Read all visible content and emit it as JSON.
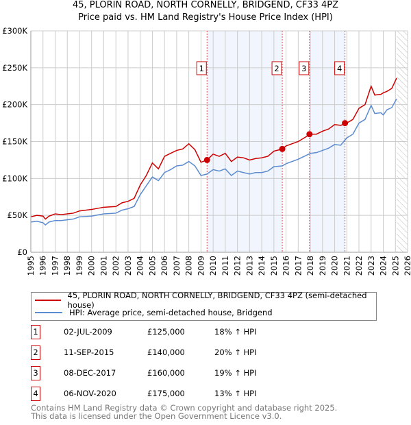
{
  "title_line1": "45, PLORIN ROAD, NORTH CORNELLY, BRIDGEND, CF33 4PZ",
  "title_line2": "Price paid vs. HM Land Registry's House Price Index (HPI)",
  "chart_data": {
    "type": "line",
    "title": "45, PLORIN ROAD, NORTH CORNELLY, BRIDGEND, CF33 4PZ — Price paid vs. HM Land Registry's House Price Index (HPI)",
    "xlim": [
      1995,
      2026
    ],
    "ylim": [
      0,
      300000
    ],
    "y_ticks": [
      {
        "v": 0,
        "label": "£0"
      },
      {
        "v": 50000,
        "label": "£50K"
      },
      {
        "v": 100000,
        "label": "£100K"
      },
      {
        "v": 150000,
        "label": "£150K"
      },
      {
        "v": 200000,
        "label": "£200K"
      },
      {
        "v": 250000,
        "label": "£250K"
      },
      {
        "v": 300000,
        "label": "£300K"
      }
    ],
    "x_ticks": [
      "1995",
      "1996",
      "1997",
      "1998",
      "1999",
      "2000",
      "2001",
      "2002",
      "2003",
      "2004",
      "2005",
      "2006",
      "2007",
      "2008",
      "2009",
      "2010",
      "2011",
      "2012",
      "2013",
      "2014",
      "2015",
      "2016",
      "2017",
      "2018",
      "2019",
      "2020",
      "2021",
      "2022",
      "2023",
      "2024",
      "2025",
      "2026"
    ],
    "grid": true,
    "forecast_hatch_from": 2025.1,
    "x": [
      1995,
      1995.5,
      1996,
      1996.2,
      1996.5,
      1997,
      1997.5,
      1998,
      1998.5,
      1999,
      2000,
      2001,
      2002,
      2002.5,
      2003,
      2003.5,
      2004,
      2004.5,
      2005,
      2005.5,
      2006,
      2006.5,
      2007,
      2007.5,
      2008,
      2008.5,
      2009,
      2009.5,
      2010,
      2010.5,
      2011,
      2011.5,
      2012,
      2012.5,
      2013,
      2013.5,
      2014,
      2014.5,
      2015,
      2015.7,
      2016,
      2017,
      2017.5,
      2018,
      2018.5,
      2019,
      2019.5,
      2020,
      2020.5,
      2021,
      2021.5,
      2022,
      2022.5,
      2023,
      2023.3,
      2023.8,
      2024,
      2024.3,
      2024.7,
      2025.1
    ],
    "series": [
      {
        "name": "45, PLORIN ROAD, NORTH CORNELLY, BRIDGEND, CF33 4PZ (semi-detached house)",
        "color": "#cc0000",
        "values": [
          48000,
          50000,
          49000,
          45000,
          49000,
          52000,
          51000,
          52000,
          53000,
          56000,
          58000,
          61000,
          62000,
          67000,
          69000,
          73000,
          91000,
          104000,
          121000,
          113000,
          130000,
          134000,
          138000,
          140000,
          147000,
          139000,
          122000,
          125000,
          133000,
          130000,
          134000,
          123000,
          129000,
          128000,
          125000,
          127000,
          128000,
          130000,
          137000,
          140000,
          144000,
          150000,
          155000,
          160000,
          160000,
          164000,
          167000,
          173000,
          172000,
          175000,
          180000,
          195000,
          200000,
          225000,
          213000,
          214000,
          216000,
          218000,
          222000,
          236000
        ]
      },
      {
        "name": "HPI: Average price, semi-detached house, Bridgend",
        "color": "#5b8bd0",
        "values": [
          41000,
          42000,
          40000,
          37000,
          41000,
          43000,
          43000,
          44000,
          45000,
          48000,
          49000,
          52000,
          53000,
          57000,
          59000,
          62000,
          78000,
          90000,
          102000,
          97000,
          108000,
          112000,
          117000,
          118000,
          123000,
          117000,
          104000,
          106000,
          112000,
          110000,
          113000,
          104000,
          110000,
          108000,
          106000,
          108000,
          108000,
          110000,
          116000,
          117000,
          120000,
          126000,
          130000,
          134000,
          135000,
          138000,
          141000,
          146000,
          145000,
          155000,
          160000,
          175000,
          180000,
          199000,
          188000,
          189000,
          186000,
          193000,
          196000,
          208000
        ]
      }
    ],
    "sales": [
      {
        "n": "1",
        "date": "02-JUL-2009",
        "x": 2009.5,
        "price": 125000,
        "price_label": "£125,000",
        "hpi": "18% ↑ HPI"
      },
      {
        "n": "2",
        "date": "11-SEP-2015",
        "x": 2015.69,
        "price": 140000,
        "price_label": "£140,000",
        "hpi": "20% ↑ HPI"
      },
      {
        "n": "3",
        "date": "08-DEC-2017",
        "x": 2017.93,
        "price": 160000,
        "price_label": "£160,000",
        "hpi": "19% ↑ HPI"
      },
      {
        "n": "4",
        "date": "06-NOV-2020",
        "x": 2020.85,
        "price": 175000,
        "price_label": "£175,000",
        "hpi": "13% ↑ HPI"
      }
    ]
  },
  "legend": {
    "red_label": "45, PLORIN ROAD, NORTH CORNELLY, BRIDGEND, CF33 4PZ (semi-detached house)",
    "blue_label": "HPI: Average price, semi-detached house, Bridgend"
  },
  "footer": {
    "line1": "Contains HM Land Registry data © Crown copyright and database right 2025.",
    "line2": "This data is licensed under the Open Government Licence v3.0."
  }
}
